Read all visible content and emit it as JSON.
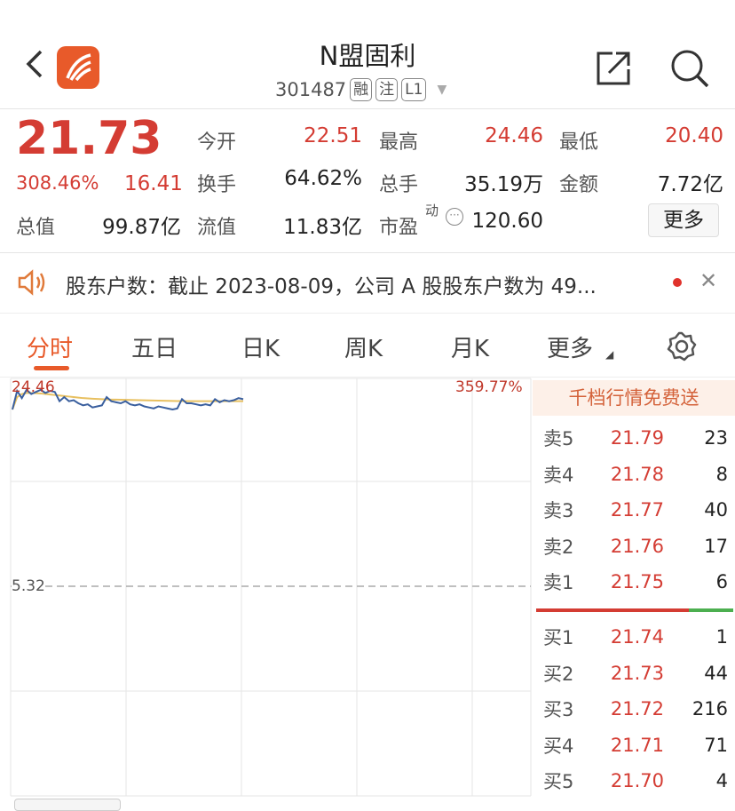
{
  "header": {
    "title": "N盟固利",
    "code": "301487",
    "tags": [
      "融",
      "注",
      "L1"
    ]
  },
  "quote": {
    "price": "21.73",
    "change_pct": "308.46%",
    "change": "16.41",
    "fields": [
      {
        "label": "今开",
        "value": "22.51",
        "color": "red"
      },
      {
        "label": "最高",
        "value": "24.46",
        "color": "red"
      },
      {
        "label": "最低",
        "value": "20.40",
        "color": "red"
      },
      {
        "label": "换手",
        "value": "64.62%",
        "color": "black"
      },
      {
        "label": "总手",
        "value": "35.19万",
        "color": "black"
      },
      {
        "label": "金额",
        "value": "7.72亿",
        "color": "black"
      },
      {
        "label": "总值",
        "value": "99.87亿",
        "color": "black"
      },
      {
        "label": "流值",
        "value": "11.83亿",
        "color": "black"
      },
      {
        "label": "市盈",
        "sup": "动",
        "value": "120.60",
        "color": "black"
      }
    ],
    "more_label": "更多"
  },
  "notice": {
    "text": "股东户数：截止 2023-08-09，公司 A 股股东户数为 49..."
  },
  "tabs": [
    {
      "label": "分时",
      "active": true
    },
    {
      "label": "五日"
    },
    {
      "label": "日K"
    },
    {
      "label": "周K"
    },
    {
      "label": "月K"
    },
    {
      "label": "更多"
    }
  ],
  "chart_data": {
    "type": "line",
    "top_price_label": "24.46",
    "pct_label": "359.77%",
    "prev_close_label": "5.32",
    "ylim": [
      5.32,
      24.46
    ],
    "price": [
      22.4,
      24.2,
      23.5,
      24.3,
      23.9,
      24.1,
      24.3,
      24.0,
      24.2,
      24.1,
      23.2,
      23.6,
      23.2,
      23.3,
      23.0,
      22.8,
      22.9,
      22.6,
      22.7,
      22.8,
      23.6,
      23.2,
      23.1,
      23.0,
      23.2,
      22.9,
      22.8,
      22.9,
      22.7,
      22.6,
      22.5,
      22.7,
      22.6,
      22.5,
      22.4,
      22.5,
      23.4,
      23.0,
      23.0,
      22.9,
      22.8,
      22.9,
      22.8,
      23.4,
      23.1,
      23.3,
      23.2,
      23.3,
      23.5,
      23.4
    ],
    "avg": [
      22.4,
      23.6,
      23.9,
      24.0,
      24.0,
      23.98,
      23.95,
      23.9,
      23.85,
      23.8,
      23.75,
      23.7,
      23.65,
      23.6,
      23.55,
      23.5,
      23.47,
      23.44,
      23.42,
      23.4,
      23.38,
      23.36,
      23.35,
      23.34,
      23.33,
      23.32,
      23.31,
      23.3,
      23.29,
      23.28,
      23.27,
      23.26,
      23.25,
      23.24,
      23.23,
      23.22,
      23.22,
      23.21,
      23.21,
      23.2,
      23.2,
      23.2,
      23.2,
      23.2,
      23.2,
      23.2,
      23.2,
      23.2,
      23.2,
      23.2
    ],
    "colors": {
      "price": "#3a5f9e",
      "avg": "#e8c060"
    }
  },
  "orderbook": {
    "promo": "千档行情免费送",
    "asks": [
      {
        "name": "卖5",
        "price": "21.79",
        "vol": "23"
      },
      {
        "name": "卖4",
        "price": "21.78",
        "vol": "8"
      },
      {
        "name": "卖3",
        "price": "21.77",
        "vol": "40"
      },
      {
        "name": "卖2",
        "price": "21.76",
        "vol": "17"
      },
      {
        "name": "卖1",
        "price": "21.75",
        "vol": "6"
      }
    ],
    "bids": [
      {
        "name": "买1",
        "price": "21.74",
        "vol": "1"
      },
      {
        "name": "买2",
        "price": "21.73",
        "vol": "44"
      },
      {
        "name": "买3",
        "price": "21.72",
        "vol": "216"
      },
      {
        "name": "买4",
        "price": "21.71",
        "vol": "71"
      },
      {
        "name": "买5",
        "price": "21.70",
        "vol": "4"
      }
    ]
  },
  "colors": {
    "up": "#d43c33",
    "down": "#4caf50",
    "accent": "#e85a2a"
  }
}
